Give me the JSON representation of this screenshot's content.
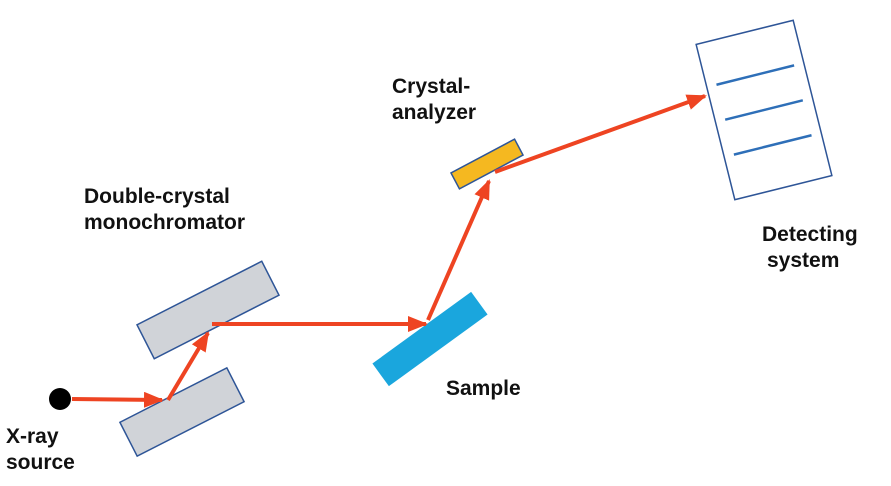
{
  "labels": {
    "source_line1": "X-ray",
    "source_line2": "source",
    "mono_line1": "Double-crystal",
    "mono_line2": "monochromator",
    "sample": "Sample",
    "analyzer_line1": "Crystal-",
    "analyzer_line2": "analyzer",
    "detector_line1": "Detecting",
    "detector_line2": "system"
  },
  "colors": {
    "beam": "#ee4422",
    "crystal_fill": "#d0d3d8",
    "crystal_stroke": "#2e5597",
    "sample_fill": "#1aa6dd",
    "analyzer_fill": "#f5b820",
    "detector_line": "#2e6fb8",
    "source_dot": "#000000"
  }
}
